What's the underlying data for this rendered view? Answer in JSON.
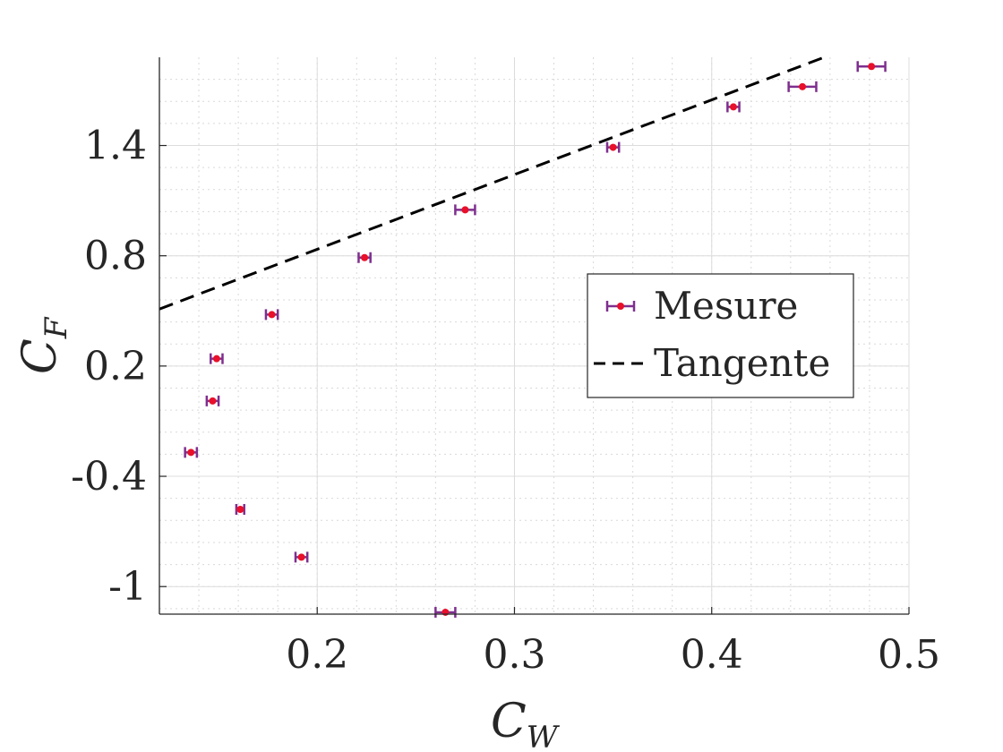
{
  "chart_data": {
    "type": "scatter",
    "xlabel": {
      "main": "C",
      "sub": "W"
    },
    "ylabel": {
      "main": "C",
      "sub": "F"
    },
    "xlim": [
      0.12,
      0.5
    ],
    "ylim": [
      -1.15,
      1.88
    ],
    "xticks": [
      {
        "value": 0.2,
        "label": "0.2"
      },
      {
        "value": 0.3,
        "label": "0.3"
      },
      {
        "value": 0.4,
        "label": "0.4"
      },
      {
        "value": 0.5,
        "label": "0.5"
      }
    ],
    "yticks": [
      {
        "value": -1.0,
        "label": "-1"
      },
      {
        "value": -0.4,
        "label": "-0.4"
      },
      {
        "value": 0.2,
        "label": "0.2"
      },
      {
        "value": 0.8,
        "label": "0.8"
      },
      {
        "value": 1.4,
        "label": "1.4"
      }
    ],
    "grid": {
      "major": true,
      "minor": true
    },
    "legend_position": "center-right",
    "colors": {
      "marker": "#e8102a",
      "errorbar": "#7e2f8e",
      "tangent": "#000000",
      "grid": "#d9d9d9",
      "axis": "#262626"
    },
    "series": [
      {
        "name": "Mesure",
        "kind": "errorbar",
        "points": [
          {
            "x": 0.265,
            "y": -1.14,
            "xerr": 0.005
          },
          {
            "x": 0.192,
            "y": -0.84,
            "xerr": 0.003
          },
          {
            "x": 0.161,
            "y": -0.58,
            "xerr": 0.002
          },
          {
            "x": 0.136,
            "y": -0.27,
            "xerr": 0.003
          },
          {
            "x": 0.147,
            "y": 0.01,
            "xerr": 0.003
          },
          {
            "x": 0.149,
            "y": 0.24,
            "xerr": 0.003
          },
          {
            "x": 0.177,
            "y": 0.48,
            "xerr": 0.003
          },
          {
            "x": 0.224,
            "y": 0.79,
            "xerr": 0.003
          },
          {
            "x": 0.275,
            "y": 1.05,
            "xerr": 0.005
          },
          {
            "x": 0.35,
            "y": 1.39,
            "xerr": 0.003
          },
          {
            "x": 0.411,
            "y": 1.61,
            "xerr": 0.003
          },
          {
            "x": 0.446,
            "y": 1.72,
            "xerr": 0.007
          },
          {
            "x": 0.481,
            "y": 1.83,
            "xerr": 0.007
          }
        ]
      },
      {
        "name": "Tangente",
        "kind": "line",
        "dash": "dashed",
        "x": [
          0.12,
          0.457
        ],
        "y": [
          0.51,
          1.88
        ]
      }
    ]
  }
}
